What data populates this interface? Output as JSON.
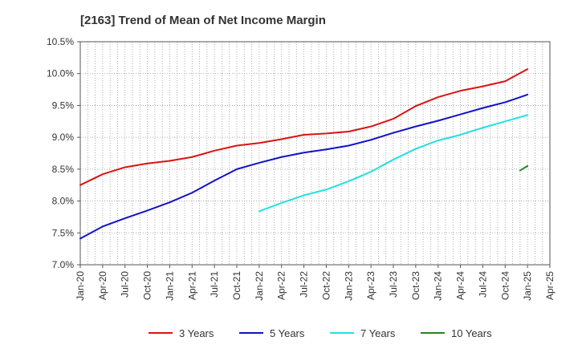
{
  "chart_data": {
    "type": "line",
    "title": "[2163]  Trend of Mean of Net Income Margin",
    "xlabel": "",
    "ylabel": "",
    "x_tick_labels": [
      "Jan-20",
      "Apr-20",
      "Jul-20",
      "Oct-20",
      "Jan-21",
      "Apr-21",
      "Jul-21",
      "Oct-21",
      "Jan-22",
      "Apr-22",
      "Jul-22",
      "Oct-22",
      "Jan-23",
      "Apr-23",
      "Jul-23",
      "Oct-23",
      "Jan-24",
      "Apr-24",
      "Jul-24",
      "Oct-24",
      "Jan-25",
      "Apr-25"
    ],
    "y_tick_labels": [
      "7.0%",
      "7.5%",
      "8.0%",
      "8.5%",
      "9.0%",
      "9.5%",
      "10.0%",
      "10.5%"
    ],
    "ylim": [
      7.0,
      10.5
    ],
    "y_unit": "%",
    "grid": true,
    "legend_position": "bottom",
    "series": [
      {
        "name": "3 Years",
        "color": "#dd1111",
        "x": [
          "Jan-20",
          "Apr-20",
          "Jul-20",
          "Oct-20",
          "Jan-21",
          "Apr-21",
          "Jul-21",
          "Oct-21",
          "Jan-22",
          "Apr-22",
          "Jul-22",
          "Oct-22",
          "Jan-23",
          "Apr-23",
          "Jul-23",
          "Oct-23",
          "Jan-24",
          "Apr-24",
          "Jul-24",
          "Oct-24",
          "Jan-25"
        ],
        "values": [
          8.25,
          8.42,
          8.53,
          8.59,
          8.63,
          8.69,
          8.79,
          8.87,
          8.91,
          8.97,
          9.04,
          9.06,
          9.09,
          9.17,
          9.29,
          9.49,
          9.63,
          9.73,
          9.8,
          9.88,
          10.07
        ]
      },
      {
        "name": "5 Years",
        "color": "#1111cc",
        "x": [
          "Jan-20",
          "Apr-20",
          "Jul-20",
          "Oct-20",
          "Jan-21",
          "Apr-21",
          "Jul-21",
          "Oct-21",
          "Jan-22",
          "Apr-22",
          "Jul-22",
          "Oct-22",
          "Jan-23",
          "Apr-23",
          "Jul-23",
          "Oct-23",
          "Jan-24",
          "Apr-24",
          "Jul-24",
          "Oct-24",
          "Jan-25"
        ],
        "values": [
          7.41,
          7.6,
          7.73,
          7.85,
          7.98,
          8.13,
          8.32,
          8.5,
          8.6,
          8.69,
          8.76,
          8.81,
          8.87,
          8.96,
          9.07,
          9.17,
          9.26,
          9.36,
          9.46,
          9.55,
          9.67
        ]
      },
      {
        "name": "7 Years",
        "color": "#22e0e0",
        "x": [
          "Jan-22",
          "Apr-22",
          "Jul-22",
          "Oct-22",
          "Jan-23",
          "Apr-23",
          "Jul-23",
          "Oct-23",
          "Jan-24",
          "Apr-24",
          "Jul-24",
          "Oct-24",
          "Jan-25"
        ],
        "values": [
          7.84,
          7.97,
          8.09,
          8.18,
          8.31,
          8.46,
          8.65,
          8.82,
          8.95,
          9.04,
          9.15,
          9.25,
          9.35
        ]
      },
      {
        "name": "10 Years",
        "color": "#228822",
        "x": [
          "Dec-24",
          "Jan-25"
        ],
        "values": [
          8.48,
          8.55
        ]
      }
    ]
  }
}
